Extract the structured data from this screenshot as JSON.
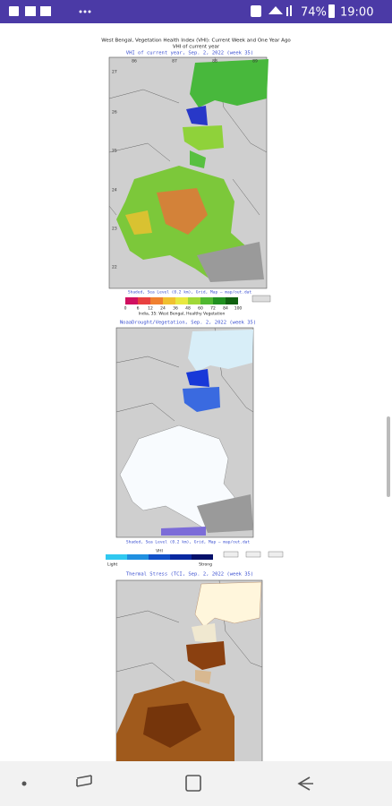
{
  "status_bar": {
    "battery": "74%",
    "time": "19:00"
  },
  "figure": {
    "title": "West Bengal, Vegetation Health Index (VHI): Current Week and One Year Ago",
    "subtitle": "VHI of current year"
  },
  "panels": [
    {
      "caption": "VHI of current year, Sep. 2, 2022 (week 35)",
      "footer": "Shaded, Sea Level (0.2 km), Grid, Map — map/out.dat",
      "legend_title": "India, 35: West Bengal, Healthy Vegetation",
      "legend_labels": [
        "0",
        "6",
        "12",
        "24",
        "36",
        "48",
        "60",
        "72",
        "84",
        "100"
      ]
    },
    {
      "caption": "NoaaDrought/Vegetation, Sep. 2, 2022 (week 35)",
      "footer": "Shaded, Sea Level (0.2 km), Grid, Map — map/out.dat",
      "legend_title": "VHI",
      "legend_labels": [
        "Light",
        "Strong"
      ]
    },
    {
      "caption": "Thermal Stress (TCI, Sep. 2, 2022 (week 35)"
    }
  ],
  "lon_labels": [
    "86",
    "87",
    "88",
    "89"
  ],
  "lat_labels": [
    "27",
    "26",
    "25",
    "24",
    "23",
    "22"
  ]
}
